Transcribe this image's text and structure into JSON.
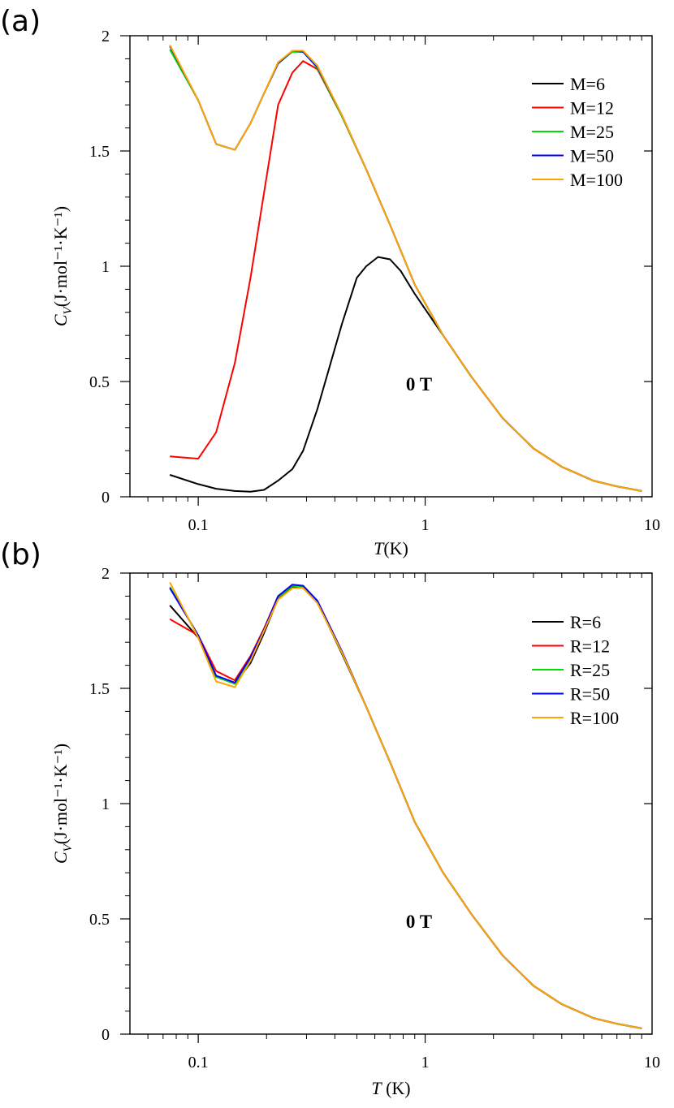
{
  "chart_data": [
    {
      "panel_label": "(a)",
      "type": "line",
      "xscale": "log",
      "xlim": [
        0.05,
        10
      ],
      "ylim": [
        0,
        2
      ],
      "xticks": [
        {
          "v": 0.1,
          "label": "0.1"
        },
        {
          "v": 1,
          "label": "1"
        },
        {
          "v": 10,
          "label": "10"
        }
      ],
      "yticks": [
        {
          "v": 0,
          "label": "0"
        },
        {
          "v": 0.5,
          "label": "0.5"
        },
        {
          "v": 1,
          "label": "1"
        },
        {
          "v": 1.5,
          "label": "1.5"
        },
        {
          "v": 2,
          "label": "2"
        }
      ],
      "xlabel": {
        "italic": "T",
        "rest": "(K)"
      },
      "ylabel": {
        "italic": "C",
        "sub": "V",
        "rest": "(J·mol⁻¹·K⁻¹)"
      },
      "annotation": "0 T",
      "legend_position": "top-right",
      "x": [
        0.075,
        0.1,
        0.12,
        0.145,
        0.17,
        0.195,
        0.225,
        0.26,
        0.29,
        0.335,
        0.43,
        0.55,
        0.7,
        0.9,
        1.2,
        1.6,
        2.2,
        3.0,
        4.0,
        5.5,
        7.0,
        9.0
      ],
      "series": [
        {
          "name": "M=6",
          "color": "#000000",
          "x": [
            0.075,
            0.1,
            0.12,
            0.145,
            0.17,
            0.195,
            0.225,
            0.26,
            0.29,
            0.335,
            0.43,
            0.5,
            0.55,
            0.62,
            0.7,
            0.78,
            0.9,
            1.2,
            1.6,
            2.2,
            3.0,
            4.0,
            5.5,
            7.0,
            9.0
          ],
          "values": [
            0.095,
            0.055,
            0.035,
            0.025,
            0.022,
            0.03,
            0.07,
            0.12,
            0.2,
            0.38,
            0.75,
            0.95,
            1.0,
            1.04,
            1.03,
            0.98,
            0.88,
            0.7,
            0.52,
            0.34,
            0.21,
            0.13,
            0.07,
            0.045,
            0.025
          ]
        },
        {
          "name": "M=12",
          "color": "#ff0000",
          "values": [
            0.175,
            0.165,
            0.28,
            0.58,
            0.95,
            1.32,
            1.7,
            1.84,
            1.89,
            1.855,
            1.65,
            1.42,
            1.18,
            0.92,
            0.7,
            0.52,
            0.34,
            0.21,
            0.13,
            0.07,
            0.045,
            0.025
          ]
        },
        {
          "name": "M=25",
          "color": "#00dd00",
          "values": [
            1.94,
            1.72,
            1.53,
            1.505,
            1.62,
            1.75,
            1.88,
            1.93,
            1.93,
            1.86,
            1.65,
            1.42,
            1.18,
            0.92,
            0.7,
            0.52,
            0.34,
            0.21,
            0.13,
            0.07,
            0.045,
            0.025
          ]
        },
        {
          "name": "M=50",
          "color": "#0000ff",
          "values": [
            1.955,
            1.72,
            1.53,
            1.505,
            1.62,
            1.75,
            1.88,
            1.935,
            1.93,
            1.865,
            1.655,
            1.42,
            1.18,
            0.92,
            0.7,
            0.52,
            0.34,
            0.21,
            0.13,
            0.07,
            0.045,
            0.025
          ]
        },
        {
          "name": "M=100",
          "color": "#ffa500",
          "values": [
            1.96,
            1.72,
            1.53,
            1.505,
            1.62,
            1.75,
            1.885,
            1.935,
            1.935,
            1.87,
            1.655,
            1.42,
            1.18,
            0.92,
            0.7,
            0.52,
            0.34,
            0.21,
            0.13,
            0.07,
            0.045,
            0.025
          ]
        }
      ]
    },
    {
      "panel_label": "(b)",
      "type": "line",
      "xscale": "log",
      "xlim": [
        0.05,
        10
      ],
      "ylim": [
        0,
        2
      ],
      "xticks": [
        {
          "v": 0.1,
          "label": "0.1"
        },
        {
          "v": 1,
          "label": "1"
        },
        {
          "v": 10,
          "label": "10"
        }
      ],
      "yticks": [
        {
          "v": 0,
          "label": "0"
        },
        {
          "v": 0.5,
          "label": "0.5"
        },
        {
          "v": 1,
          "label": "1"
        },
        {
          "v": 1.5,
          "label": "1.5"
        },
        {
          "v": 2,
          "label": "2"
        }
      ],
      "xlabel": {
        "italic": "T",
        "rest": " (K)"
      },
      "ylabel": {
        "italic": "C",
        "sub": "V",
        "rest": "(J·mol⁻¹·K⁻¹)"
      },
      "annotation": "0 T",
      "legend_position": "top-right",
      "x": [
        0.075,
        0.1,
        0.12,
        0.145,
        0.17,
        0.195,
        0.225,
        0.26,
        0.29,
        0.335,
        0.43,
        0.55,
        0.7,
        0.9,
        1.2,
        1.6,
        2.2,
        3.0,
        4.0,
        5.5,
        7.0,
        9.0
      ],
      "series": [
        {
          "name": "R=6",
          "color": "#000000",
          "values": [
            1.86,
            1.72,
            1.55,
            1.52,
            1.61,
            1.74,
            1.89,
            1.94,
            1.94,
            1.875,
            1.65,
            1.42,
            1.18,
            0.92,
            0.7,
            0.52,
            0.34,
            0.21,
            0.13,
            0.07,
            0.045,
            0.025
          ]
        },
        {
          "name": "R=12",
          "color": "#ff0000",
          "values": [
            1.8,
            1.73,
            1.575,
            1.535,
            1.64,
            1.76,
            1.9,
            1.945,
            1.94,
            1.88,
            1.66,
            1.42,
            1.18,
            0.92,
            0.7,
            0.52,
            0.34,
            0.21,
            0.13,
            0.07,
            0.045,
            0.025
          ]
        },
        {
          "name": "R=25",
          "color": "#00dd00",
          "values": [
            1.94,
            1.73,
            1.55,
            1.52,
            1.63,
            1.75,
            1.895,
            1.945,
            1.94,
            1.875,
            1.655,
            1.42,
            1.18,
            0.92,
            0.7,
            0.52,
            0.34,
            0.21,
            0.13,
            0.07,
            0.045,
            0.025
          ]
        },
        {
          "name": "R=50",
          "color": "#0000ff",
          "values": [
            1.935,
            1.73,
            1.555,
            1.525,
            1.635,
            1.755,
            1.9,
            1.95,
            1.945,
            1.88,
            1.66,
            1.42,
            1.18,
            0.92,
            0.7,
            0.52,
            0.34,
            0.21,
            0.13,
            0.07,
            0.045,
            0.025
          ]
        },
        {
          "name": "R=100",
          "color": "#ffa500",
          "values": [
            1.96,
            1.72,
            1.53,
            1.505,
            1.62,
            1.75,
            1.885,
            1.935,
            1.935,
            1.87,
            1.655,
            1.42,
            1.18,
            0.92,
            0.7,
            0.52,
            0.34,
            0.21,
            0.13,
            0.07,
            0.045,
            0.025
          ]
        }
      ]
    }
  ]
}
